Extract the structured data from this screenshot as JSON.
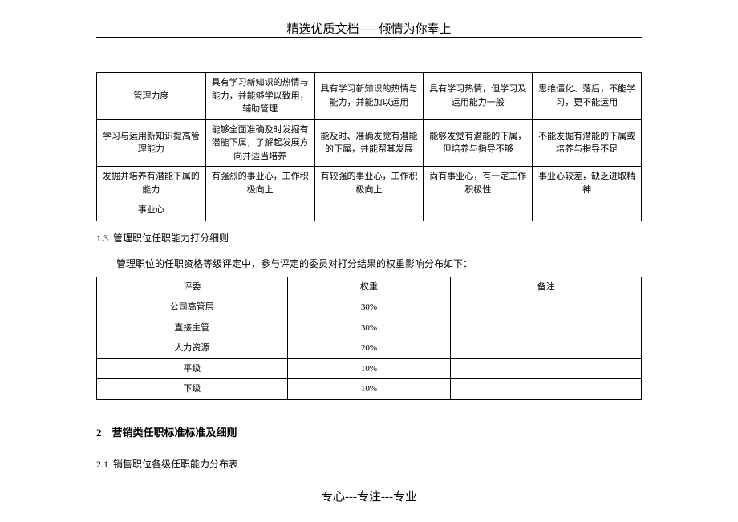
{
  "header": "精选优质文档-----倾情为你奉上",
  "footer": "专心---专注---专业",
  "table1": {
    "rows": [
      [
        "管理力度",
        "具有学习新知识的热情与能力，并能够学以致用，辅助管理",
        "具有学习新知识的热情与能力，并能加以运用",
        "具有学习热情，但学习及运用能力一般",
        "思维僵化、落后，不能学习，更不能运用"
      ],
      [
        "学习与运用新知识提高管理能力",
        "能够全面准确及时发掘有潜能下属，了解起发展方向并适当培养",
        "能及时、准确发觉有潜能的下属，并能帮其发展",
        "能够发觉有潜能的下属，但培养与指导不够",
        "不能发掘有潜能的下属或培养与指导不足"
      ],
      [
        "发掘并培养有潜能下属的能力",
        "有强烈的事业心，工作积极向上",
        "有较强的事业心，工作积极向上",
        "尚有事业心，有一定工作积极性",
        "事业心较差，缺乏进取精神"
      ],
      [
        "事业心",
        "",
        "",
        "",
        ""
      ]
    ]
  },
  "section13": {
    "number": "1.3",
    "title": "管理职位任职能力打分细则",
    "description": "管理职位的任职资格等级评定中，参与评定的委员对打分结果的权重影响分布如下："
  },
  "table2": {
    "header": [
      "评委",
      "权重",
      "备注"
    ],
    "rows": [
      [
        "公司高管层",
        "30%",
        ""
      ],
      [
        "直接主管",
        "30%",
        ""
      ],
      [
        "人力资源",
        "20%",
        ""
      ],
      [
        "平级",
        "10%",
        ""
      ],
      [
        "下级",
        "10%",
        ""
      ]
    ]
  },
  "section2": {
    "number": "2",
    "title": "营销类任职标准标准及细则"
  },
  "section21": {
    "number": "2.1",
    "title": "销售职位各级任职能力分布表"
  }
}
